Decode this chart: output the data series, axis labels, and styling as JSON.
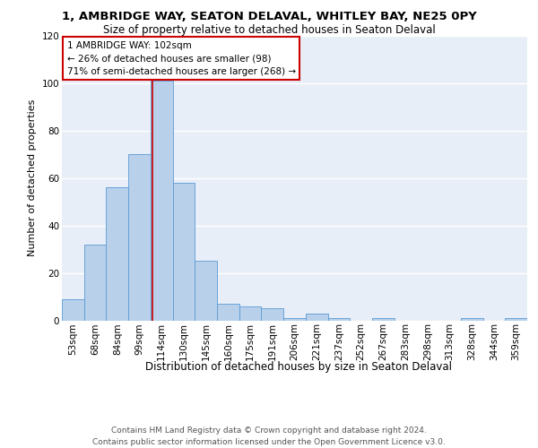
{
  "title1": "1, AMBRIDGE WAY, SEATON DELAVAL, WHITLEY BAY, NE25 0PY",
  "title2": "Size of property relative to detached houses in Seaton Delaval",
  "xlabel": "Distribution of detached houses by size in Seaton Delaval",
  "ylabel": "Number of detached properties",
  "categories": [
    "53sqm",
    "68sqm",
    "84sqm",
    "99sqm",
    "114sqm",
    "130sqm",
    "145sqm",
    "160sqm",
    "175sqm",
    "191sqm",
    "206sqm",
    "221sqm",
    "237sqm",
    "252sqm",
    "267sqm",
    "283sqm",
    "298sqm",
    "313sqm",
    "328sqm",
    "344sqm",
    "359sqm"
  ],
  "values": [
    9,
    32,
    56,
    70,
    101,
    58,
    25,
    7,
    6,
    5,
    1,
    3,
    1,
    0,
    1,
    0,
    0,
    0,
    1,
    0,
    1
  ],
  "bar_color": "#b8d0ea",
  "bar_edge_color": "#5b9bd5",
  "annotation_text": "1 AMBRIDGE WAY: 102sqm\n← 26% of detached houses are smaller (98)\n71% of semi-detached houses are larger (268) →",
  "annotation_box_color": "white",
  "annotation_box_edge_color": "#cc0000",
  "vline_color": "#cc0000",
  "vline_x": 3.6,
  "ylim": [
    0,
    120
  ],
  "yticks": [
    0,
    20,
    40,
    60,
    80,
    100,
    120
  ],
  "footer": "Contains HM Land Registry data © Crown copyright and database right 2024.\nContains public sector information licensed under the Open Government Licence v3.0.",
  "bg_color": "#e8eef7",
  "grid_color": "#ffffff",
  "title1_fontsize": 9.5,
  "title2_fontsize": 8.5,
  "xlabel_fontsize": 8.5,
  "ylabel_fontsize": 8,
  "tick_fontsize": 7.5,
  "annotation_fontsize": 7.5,
  "footer_fontsize": 6.5
}
